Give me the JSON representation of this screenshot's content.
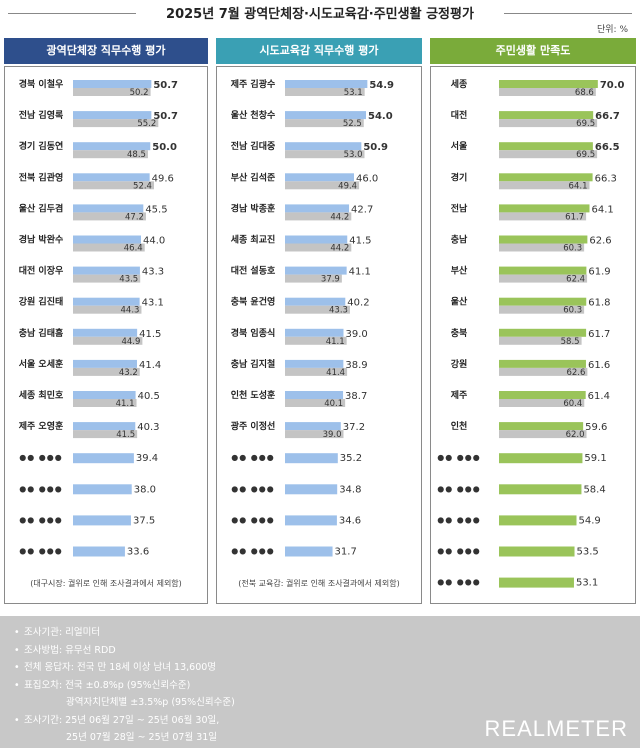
{
  "title": "2025년 7월 광역단체장·시도교육감·주민생활 긍정평가",
  "unit": "단위: %",
  "colors": {
    "header1": "#2e4f8c",
    "header2": "#3aa0b4",
    "header3": "#7aab3a",
    "bar_blue": "#9dc0ea",
    "bar_green": "#9ac45a",
    "bar_prev": "#c4c4c4"
  },
  "chart_data": [
    {
      "type": "bar",
      "title": "광역단체장 직무수행 평가",
      "categories": [
        "경북 이철우",
        "전남 김영록",
        "경기 김동연",
        "전북 김관영",
        "울산 김두겸",
        "경남 박완수",
        "대전 이장우",
        "강원 김진태",
        "충남 김태흠",
        "서울 오세훈",
        "세종 최민호",
        "제주 오영훈",
        "●● ●●●",
        "●● ●●●",
        "●● ●●●",
        "●● ●●●"
      ],
      "series": [
        {
          "name": "7월",
          "values": [
            50.7,
            50.7,
            50.0,
            49.6,
            45.5,
            44.0,
            43.3,
            43.1,
            41.5,
            41.4,
            40.5,
            40.3,
            39.4,
            38.0,
            37.5,
            33.6
          ]
        },
        {
          "name": "6월",
          "values": [
            50.2,
            55.2,
            48.5,
            52.4,
            47.2,
            46.4,
            43.5,
            44.3,
            44.9,
            43.2,
            41.1,
            41.5,
            null,
            null,
            null,
            null
          ]
        }
      ],
      "note": "(대구시장: 궐위로 인해 조사결과에서 제외함)"
    },
    {
      "type": "bar",
      "title": "시도교육감 직무수행 평가",
      "categories": [
        "제주 김광수",
        "울산 천창수",
        "전남 김대중",
        "부산 김석준",
        "경남 박종훈",
        "세종 최교진",
        "대전 설동호",
        "충북 윤건영",
        "경북 임종식",
        "충남 김지철",
        "인천 도성훈",
        "광주 이정선",
        "●● ●●●",
        "●● ●●●",
        "●● ●●●",
        "●● ●●●"
      ],
      "series": [
        {
          "name": "7월",
          "values": [
            54.9,
            54.0,
            50.9,
            46.0,
            42.7,
            41.5,
            41.1,
            40.2,
            39.0,
            38.9,
            38.7,
            37.2,
            35.2,
            34.8,
            34.6,
            31.7
          ]
        },
        {
          "name": "6월",
          "values": [
            53.1,
            52.5,
            53.0,
            49.4,
            44.2,
            44.2,
            37.9,
            43.3,
            41.1,
            41.4,
            40.1,
            39.0,
            null,
            null,
            null,
            null
          ]
        }
      ],
      "note": "(전북 교육감: 궐위로 인해 조사결과에서 제외함)"
    },
    {
      "type": "bar",
      "title": "주민생활 만족도",
      "categories": [
        "세종",
        "대전",
        "서울",
        "경기",
        "전남",
        "충남",
        "부산",
        "울산",
        "충북",
        "강원",
        "제주",
        "인천",
        "●● ●●●",
        "●● ●●●",
        "●● ●●●",
        "●● ●●●",
        "●● ●●●"
      ],
      "series": [
        {
          "name": "7월",
          "values": [
            70.0,
            66.7,
            66.5,
            66.3,
            64.1,
            62.6,
            61.9,
            61.8,
            61.7,
            61.6,
            61.4,
            59.6,
            59.1,
            58.4,
            54.9,
            53.5,
            53.1
          ]
        },
        {
          "name": "6월",
          "values": [
            68.6,
            69.5,
            69.5,
            64.1,
            61.7,
            60.3,
            62.4,
            60.3,
            58.5,
            62.6,
            60.4,
            62.0,
            null,
            null,
            null,
            null,
            null
          ]
        }
      ],
      "note": ""
    }
  ],
  "footer": {
    "items": [
      "조사기관: 리얼미터",
      "조사방법: 유무선 RDD",
      "전체 응답자: 전국 만 18세 이상 남녀 13,600명",
      "표집오차: 전국 ±0.8%p (95%신뢰수준)",
      "광역자치단체별 ±3.5%p (95%신뢰수준)",
      "조사기간: 25년 06월 27일 ~ 25년 06월 30일,",
      "25년 07월 28일 ~ 25년 07월 31일"
    ],
    "logo": "REALMETER"
  }
}
